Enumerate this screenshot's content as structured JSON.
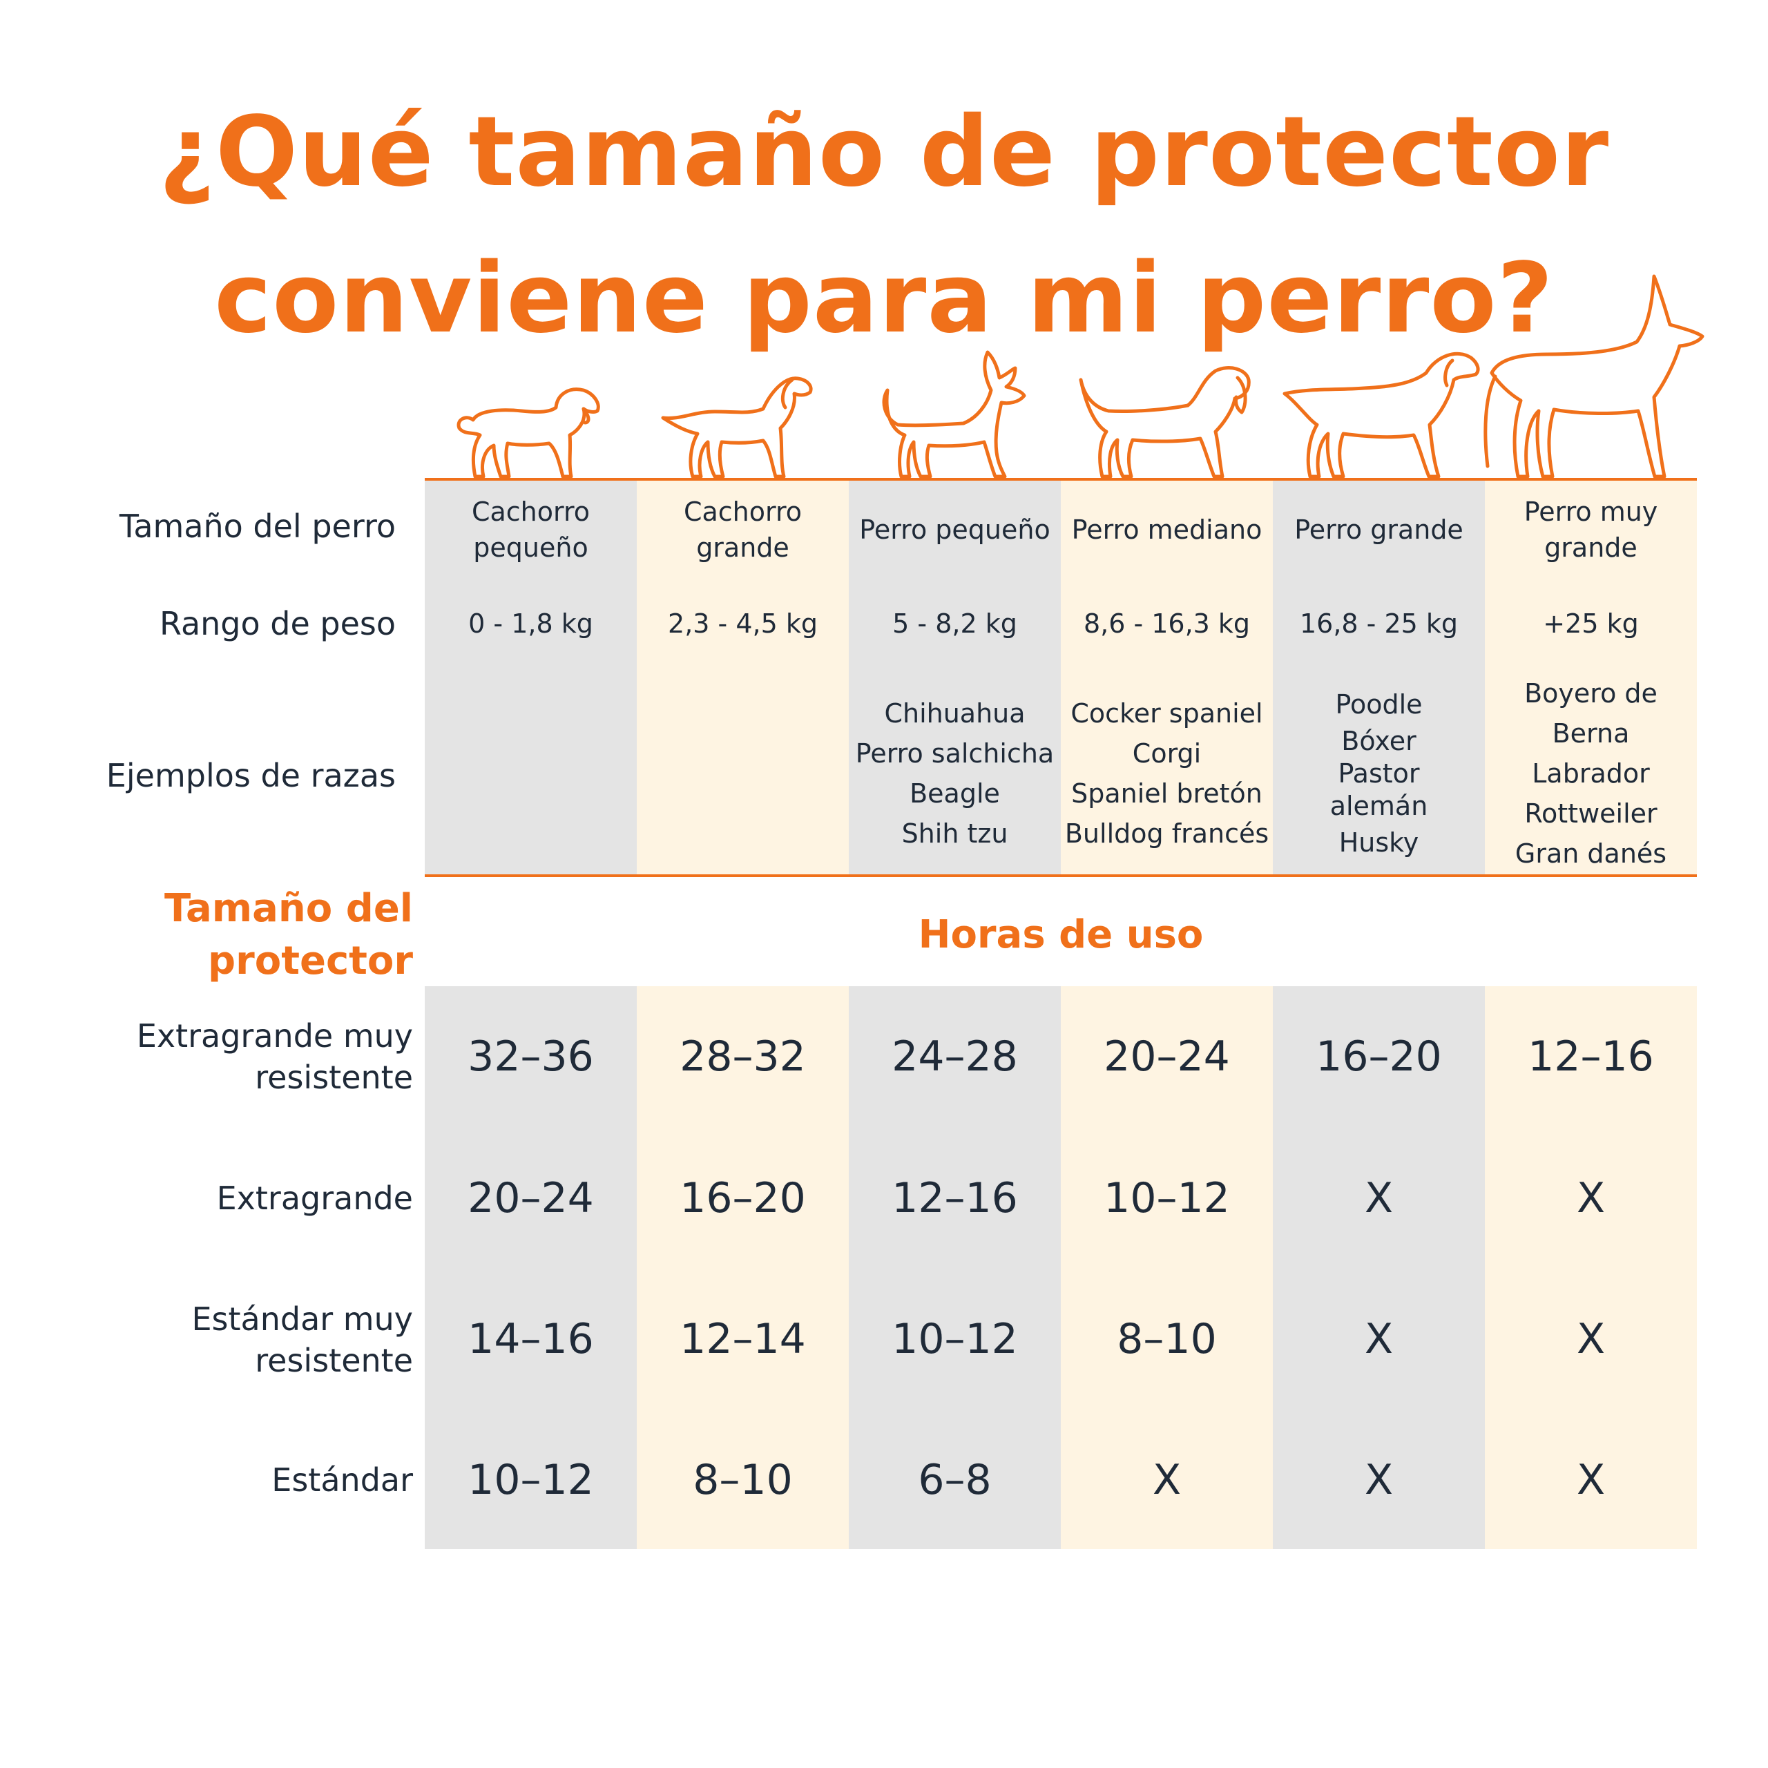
{
  "title": {
    "line1": "¿Qué tamaño de protector",
    "line2": "conviene para mi perro?"
  },
  "colors": {
    "accent": "#f0701a",
    "column_gray": "#e4e4e4",
    "column_cream": "#fef4e2",
    "text": "#1f2a38"
  },
  "dog_icons": [
    "puppy-small-icon",
    "puppy-large-icon",
    "small-dog-icon",
    "medium-dog-icon",
    "large-dog-icon",
    "extra-large-dog-icon"
  ],
  "row_labels": {
    "size": "Tamaño del perro",
    "weight": "Rango de peso",
    "breeds": "Ejemplos de razas"
  },
  "columns": [
    {
      "size": [
        "Cachorro",
        "pequeño"
      ],
      "weight": "0 - 1,8 kg",
      "breeds": []
    },
    {
      "size": [
        "Cachorro grande"
      ],
      "weight": "2,3 - 4,5 kg",
      "breeds": []
    },
    {
      "size": [
        "Perro pequeño"
      ],
      "weight": "5 - 8,2 kg",
      "breeds": [
        "Chihuahua",
        "Perro salchicha",
        "Beagle",
        "Shih tzu"
      ]
    },
    {
      "size": [
        "Perro mediano"
      ],
      "weight": "8,6 - 16,3 kg",
      "breeds": [
        "Cocker spaniel",
        "Corgi",
        "Spaniel bretón",
        "Bulldog francés"
      ]
    },
    {
      "size": [
        "Perro grande"
      ],
      "weight": "16,8 - 25 kg",
      "breeds": [
        "Poodle",
        "Bóxer",
        "Pastor",
        "alemán",
        "Husky"
      ]
    },
    {
      "size": [
        "Perro muy",
        "grande"
      ],
      "weight": "+25 kg",
      "breeds": [
        "Boyero de Berna",
        "Labrador",
        "Rottweiler",
        "Gran danés"
      ]
    }
  ],
  "protector_header": {
    "label_line1": "Tamaño del",
    "label_line2": "protector",
    "hours_title": "Horas de uso"
  },
  "protector_rows": [
    {
      "label": [
        "Extragrande muy",
        "resistente"
      ],
      "values": [
        "32–36",
        "28–32",
        "24–28",
        "20–24",
        "16–20",
        "12–16"
      ]
    },
    {
      "label": [
        "Extragrande"
      ],
      "values": [
        "20–24",
        "16–20",
        "12–16",
        "10–12",
        "X",
        "X"
      ]
    },
    {
      "label": [
        "Estándar muy",
        "resistente"
      ],
      "values": [
        "14–16",
        "12–14",
        "10–12",
        "8–10",
        "X",
        "X"
      ]
    },
    {
      "label": [
        "Estándar"
      ],
      "values": [
        "10–12",
        "8–10",
        "6–8",
        "X",
        "X",
        "X"
      ]
    }
  ]
}
